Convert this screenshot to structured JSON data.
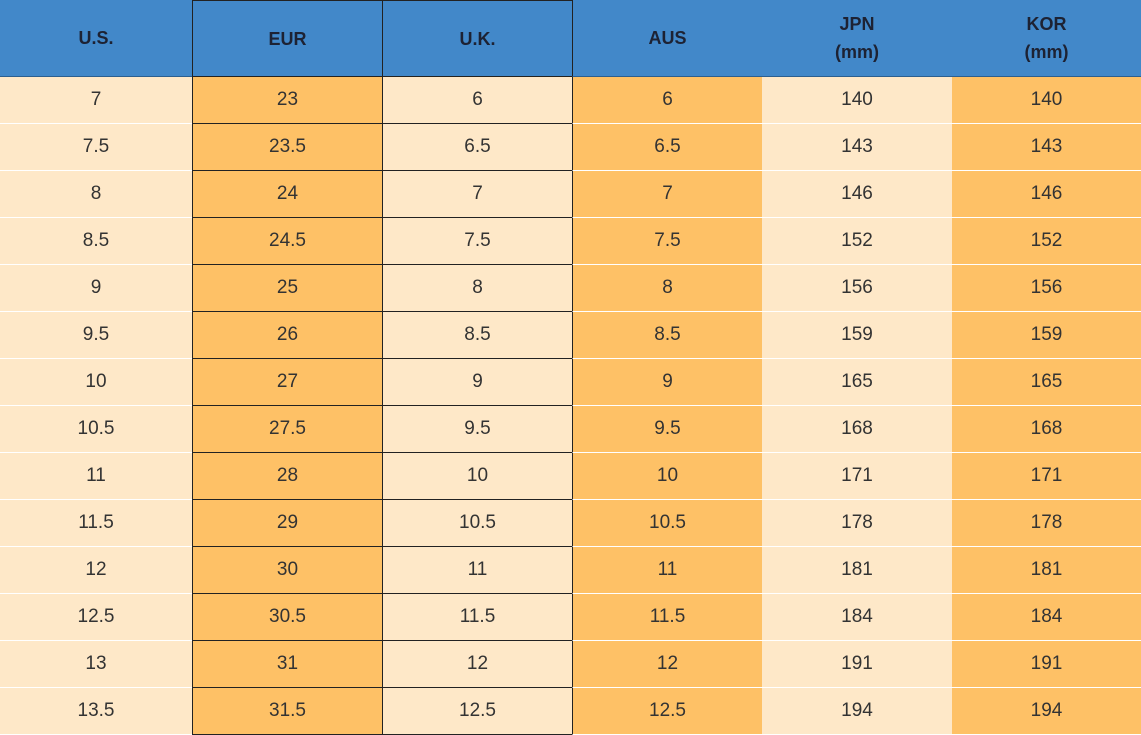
{
  "table": {
    "header": [
      "U.S.",
      "EUR",
      "U.K.",
      "AUS",
      "JPN\n(mm)",
      "KOR\n(mm)"
    ],
    "rows": [
      [
        "7",
        "23",
        "6",
        "6",
        "140",
        "140"
      ],
      [
        "7.5",
        "23.5",
        "6.5",
        "6.5",
        "143",
        "143"
      ],
      [
        "8",
        "24",
        "7",
        "7",
        "146",
        "146"
      ],
      [
        "8.5",
        "24.5",
        "7.5",
        "7.5",
        "152",
        "152"
      ],
      [
        "9",
        "25",
        "8",
        "8",
        "156",
        "156"
      ],
      [
        "9.5",
        "26",
        "8.5",
        "8.5",
        "159",
        "159"
      ],
      [
        "10",
        "27",
        "9",
        "9",
        "165",
        "165"
      ],
      [
        "10.5",
        "27.5",
        "9.5",
        "9.5",
        "168",
        "168"
      ],
      [
        "11",
        "28",
        "10",
        "10",
        "171",
        "171"
      ],
      [
        "11.5",
        "29",
        "10.5",
        "10.5",
        "178",
        "178"
      ],
      [
        "12",
        "30",
        "11",
        "11",
        "181",
        "181"
      ],
      [
        "12.5",
        "30.5",
        "11.5",
        "11.5",
        "184",
        "184"
      ],
      [
        "13",
        "31",
        "12",
        "12",
        "191",
        "191"
      ],
      [
        "13.5",
        "31.5",
        "12.5",
        "12.5",
        "194",
        "194"
      ]
    ]
  }
}
